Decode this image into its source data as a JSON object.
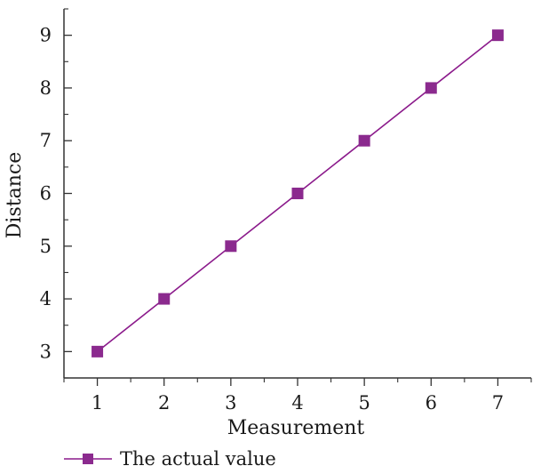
{
  "chart_data": {
    "type": "line",
    "title": "",
    "xlabel": "Measurement",
    "ylabel": "Distance",
    "x": [
      1,
      2,
      3,
      4,
      5,
      6,
      7
    ],
    "series": [
      {
        "name": "The actual value",
        "values": [
          3,
          4,
          5,
          6,
          7,
          8,
          9
        ],
        "color": "#8b1a8b",
        "marker": "square"
      }
    ],
    "xlim": [
      0.5,
      7.5
    ],
    "ylim": [
      2.5,
      9.5
    ],
    "xticks": [
      "1",
      "2",
      "3",
      "4",
      "5",
      "6",
      "7"
    ],
    "yticks": [
      "3",
      "4",
      "5",
      "6",
      "7",
      "8",
      "9"
    ],
    "grid": false,
    "legend_position": "bottom-left"
  },
  "colors": {
    "series_line": "#8b1a8b",
    "marker_fill": "#8b2a8e",
    "axis": "#333333"
  }
}
